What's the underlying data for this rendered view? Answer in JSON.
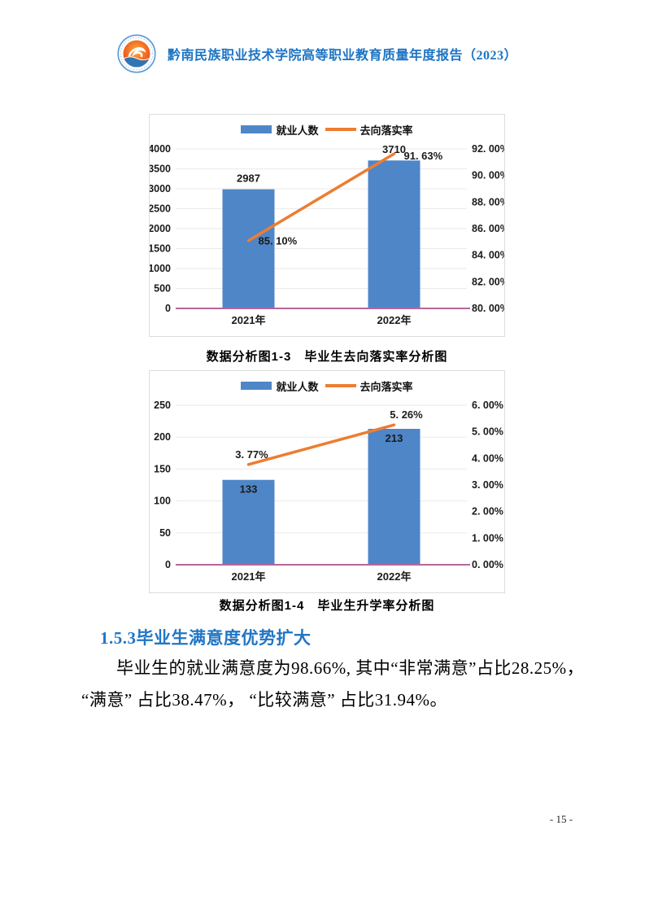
{
  "header": {
    "title": "黔南民族职业技术学院高等职业教育质量年度报告（2023）",
    "logo_icon": "school-emblem-icon"
  },
  "figures": [
    {
      "caption": "数据分析图1-3　毕业生去向落实率分析图"
    },
    {
      "caption": "数据分析图1-4　毕业生升学率分析图"
    }
  ],
  "section": {
    "heading": "1.5.3毕业生满意度优势扩大",
    "paragraph_lines": [
      "毕业生的就业满意度为98.66%, 其中“非常满意”占比28.25%，",
      "“满意” 占比38.47%， “比较满意” 占比31.94%。"
    ]
  },
  "page": {
    "number": "- 15 -"
  },
  "colors": {
    "title_blue": "#1C74C4",
    "heading_blue": "#2176C5",
    "bar_blue": "#4E86C8",
    "line_orange": "#ED7D31",
    "baseline_plum": "#B5679C",
    "grid_gray": "#EAEAEA",
    "border_gray": "#DCDCDC"
  },
  "chart_data": [
    {
      "type": "bar-line",
      "title": "数据分析图1-3　毕业生去向落实率分析图",
      "categories": [
        "2021年",
        "2022年"
      ],
      "series": [
        {
          "name": "就业人数",
          "kind": "bar",
          "axis": "left",
          "values": [
            2987,
            3710
          ],
          "labels": [
            "2987",
            "3710"
          ],
          "color": "#4E86C8"
        },
        {
          "name": "去向落实率",
          "kind": "line",
          "axis": "right",
          "values": [
            85.1,
            91.63
          ],
          "labels": [
            "85. 10%",
            "91. 63%"
          ],
          "color": "#ED7D31"
        }
      ],
      "left_axis": {
        "min": 0,
        "max": 4000,
        "step": 500
      },
      "right_axis": {
        "min": 80,
        "max": 92,
        "step": 2,
        "labels": [
          "80. 00%",
          "82. 00%",
          "84. 00%",
          "86. 00%",
          "88. 00%",
          "90. 00%",
          "92. 00%"
        ]
      },
      "legend_position": "top",
      "grid": true,
      "baseline_color": "#B5679C"
    },
    {
      "type": "bar-line",
      "title": "数据分析图1-4　毕业生升学率分析图",
      "categories": [
        "2021年",
        "2022年"
      ],
      "series": [
        {
          "name": "就业人数",
          "kind": "bar",
          "axis": "left",
          "values": [
            133,
            213
          ],
          "labels": [
            "133",
            "213"
          ],
          "color": "#4E86C8"
        },
        {
          "name": "去向落实率",
          "kind": "line",
          "axis": "right",
          "values": [
            3.77,
            5.26
          ],
          "labels": [
            "3. 77%",
            "5. 26%"
          ],
          "color": "#ED7D31"
        }
      ],
      "left_axis": {
        "min": 0,
        "max": 250,
        "step": 50
      },
      "right_axis": {
        "min": 0,
        "max": 6,
        "step": 1,
        "labels": [
          "0. 00%",
          "1. 00%",
          "2. 00%",
          "3. 00%",
          "4. 00%",
          "5. 00%",
          "6. 00%"
        ]
      },
      "legend_position": "top",
      "grid": true,
      "baseline_color": "#B5679C"
    }
  ]
}
